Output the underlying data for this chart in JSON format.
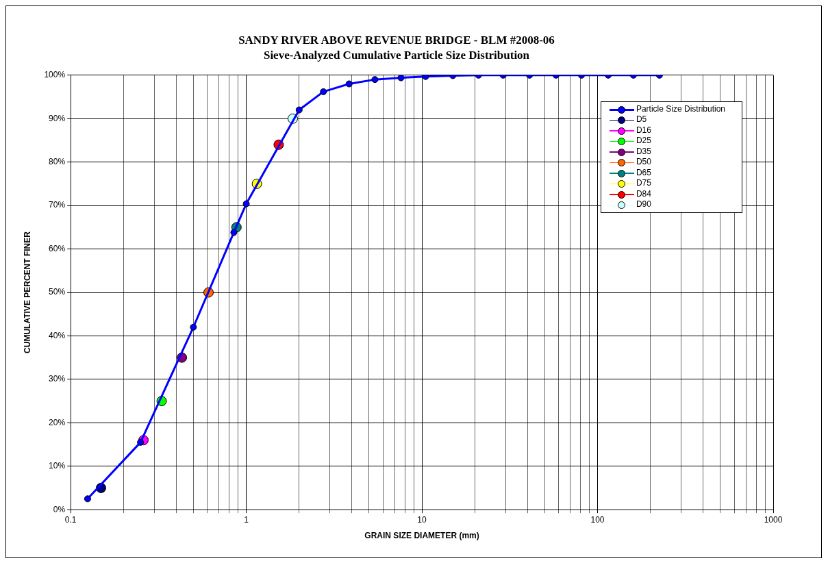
{
  "chart_data": {
    "type": "line",
    "title": "SANDY RIVER ABOVE REVENUE BRIDGE - BLM #2008-06",
    "subtitle": "Sieve-Analyzed Cumulative Particle Size Distribution",
    "xlabel": "GRAIN SIZE DIAMETER (mm)",
    "ylabel": "CUMULATIVE PERCENT FINER",
    "log": "x",
    "grid": true,
    "legend": "top right",
    "marker": "circle",
    "line_style": "solid",
    "xlim": [
      0.1,
      1000
    ],
    "xticks": [
      0.1,
      {
        "value": 0.2,
        "label": null
      },
      {
        "value": 0.3,
        "label": null
      },
      {
        "value": 0.4,
        "label": null
      },
      {
        "value": 0.5,
        "label": null
      },
      {
        "value": 0.6,
        "label": null
      },
      {
        "value": 0.7,
        "label": null
      },
      {
        "value": 0.8,
        "label": null
      },
      {
        "value": 0.9,
        "label": null
      },
      1,
      {
        "value": 2,
        "label": null
      },
      {
        "value": 3,
        "label": null
      },
      {
        "value": 4,
        "label": null
      },
      {
        "value": 5,
        "label": null
      },
      {
        "value": 6,
        "label": null
      },
      {
        "value": 7,
        "label": null
      },
      {
        "value": 8,
        "label": null
      },
      {
        "value": 9,
        "label": null
      },
      10,
      {
        "value": 20,
        "label": null
      },
      {
        "value": 30,
        "label": null
      },
      {
        "value": 40,
        "label": null
      },
      {
        "value": 50,
        "label": null
      },
      {
        "value": 60,
        "label": null
      },
      {
        "value": 70,
        "label": null
      },
      {
        "value": 80,
        "label": null
      },
      {
        "value": 90,
        "label": null
      },
      100,
      {
        "value": 200,
        "label": null
      },
      {
        "value": 300,
        "label": null
      },
      {
        "value": 400,
        "label": null
      },
      {
        "value": 500,
        "label": null
      },
      {
        "value": 600,
        "label": null
      },
      {
        "value": 700,
        "label": null
      },
      {
        "value": 800,
        "label": null
      },
      {
        "value": 900,
        "label": null
      },
      1000
    ],
    "ylim": [
      0,
      100
    ],
    "yticks": [
      {
        "value": 0,
        "label": "0%"
      },
      {
        "value": 10,
        "label": "10%"
      },
      {
        "value": 20,
        "label": "20%"
      },
      {
        "value": 30,
        "label": "30%"
      },
      {
        "value": 40,
        "label": "40%"
      },
      {
        "value": 50,
        "label": "50%"
      },
      {
        "value": 60,
        "label": "60%"
      },
      {
        "value": 70,
        "label": "70%"
      },
      {
        "value": 80,
        "label": "80%"
      },
      {
        "value": 90,
        "label": "90%"
      },
      {
        "value": 100,
        "label": "100%"
      }
    ],
    "series": [
      {
        "name": "Particle Size Distribution",
        "color": "#0000ff",
        "x": [
          0.125,
          0.25,
          0.5,
          0.85,
          1.0,
          2.0,
          2.75,
          3.85,
          5.4,
          7.6,
          10.5,
          15,
          21,
          29,
          41,
          58,
          81,
          115,
          160,
          225
        ],
        "values": [
          2.5,
          15.5,
          42,
          63.8,
          70.4,
          92,
          96.2,
          98,
          99,
          99.4,
          99.7,
          99.9,
          100,
          100,
          100,
          100,
          100,
          100,
          100,
          100
        ]
      },
      {
        "name": "D5",
        "type": "scatter",
        "color": "#000080",
        "x": [
          0.149
        ],
        "values": [
          5
        ]
      },
      {
        "name": "D16",
        "type": "scatter",
        "color": "#ff00ff",
        "x": [
          0.26
        ],
        "values": [
          16
        ]
      },
      {
        "name": "D25",
        "type": "scatter",
        "color": "#00ff00",
        "x": [
          0.33
        ],
        "values": [
          25
        ]
      },
      {
        "name": "D35",
        "type": "scatter",
        "color": "#800080",
        "x": [
          0.43
        ],
        "values": [
          35
        ]
      },
      {
        "name": "D50",
        "type": "scatter",
        "color": "#ff6600",
        "x": [
          0.61
        ],
        "values": [
          50
        ]
      },
      {
        "name": "D65",
        "type": "scatter",
        "color": "#008080",
        "x": [
          0.88
        ],
        "values": [
          65
        ]
      },
      {
        "name": "D75",
        "type": "scatter",
        "color": "#ffff00",
        "x": [
          1.15
        ],
        "values": [
          75
        ]
      },
      {
        "name": "D84",
        "type": "scatter",
        "color": "#ff0000",
        "x": [
          1.53
        ],
        "values": [
          84
        ]
      },
      {
        "name": "D90",
        "type": "scatter",
        "color": "#ccffff",
        "x": [
          1.84
        ],
        "values": [
          90
        ]
      }
    ]
  }
}
